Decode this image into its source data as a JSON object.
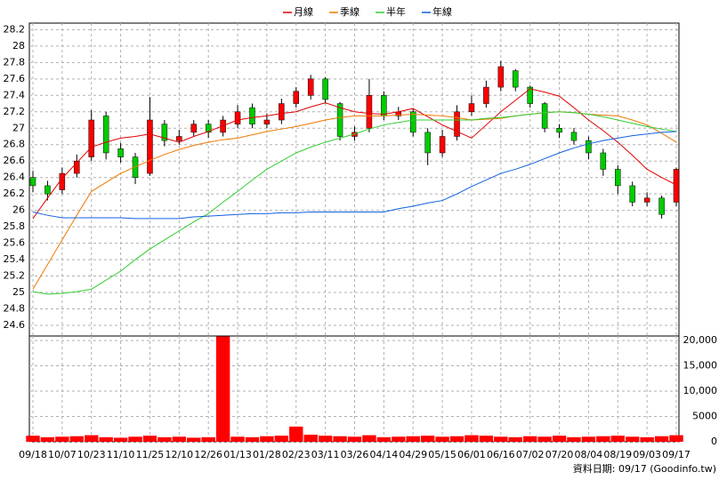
{
  "chart_data": [
    {
      "type": "candlestick",
      "categories": [
        "09/18",
        null,
        "10/07",
        null,
        "10/23",
        null,
        "11/10",
        null,
        "11/25",
        null,
        "12/10",
        null,
        "12/26",
        null,
        "01/13",
        null,
        "01/28",
        null,
        "02/23",
        null,
        "03/11",
        null,
        "03/26",
        null,
        "04/14",
        null,
        "04/29",
        null,
        "05/15",
        null,
        "06/01",
        null,
        "06/16",
        null,
        "07/02",
        null,
        "07/20",
        null,
        "08/04",
        null,
        "08/19",
        null,
        "09/03",
        null,
        "09/17"
      ],
      "open": [
        26.4,
        26.3,
        26.25,
        26.45,
        26.65,
        27.15,
        26.75,
        26.65,
        26.45,
        27.05,
        26.85,
        26.95,
        27.05,
        26.95,
        27.05,
        27.25,
        27.05,
        27.1,
        27.3,
        27.4,
        27.6,
        27.3,
        26.9,
        27.0,
        27.4,
        27.15,
        27.2,
        26.95,
        26.7,
        26.9,
        27.2,
        27.3,
        27.5,
        27.7,
        27.5,
        27.3,
        27.0,
        26.95,
        26.85,
        26.7,
        26.5,
        26.3,
        26.1,
        26.15,
        26.1
      ],
      "high": [
        26.48,
        26.36,
        26.52,
        26.68,
        27.22,
        27.2,
        26.82,
        26.7,
        27.38,
        27.1,
        26.98,
        27.1,
        27.1,
        27.15,
        27.28,
        27.3,
        27.18,
        27.36,
        27.5,
        27.65,
        27.62,
        27.32,
        27.02,
        27.6,
        27.45,
        27.26,
        27.24,
        27.0,
        26.98,
        27.28,
        27.4,
        27.58,
        27.82,
        27.72,
        27.52,
        27.32,
        27.05,
        27.0,
        26.9,
        26.75,
        26.55,
        26.35,
        26.22,
        26.18,
        26.52
      ],
      "low": [
        26.22,
        26.12,
        26.2,
        26.4,
        26.6,
        26.62,
        26.58,
        26.32,
        26.42,
        26.78,
        26.8,
        26.9,
        26.88,
        26.9,
        27.0,
        27.0,
        27.0,
        27.05,
        27.25,
        27.35,
        27.3,
        26.85,
        26.85,
        26.95,
        27.1,
        27.1,
        26.9,
        26.55,
        26.65,
        26.85,
        27.15,
        27.25,
        27.45,
        27.45,
        27.25,
        26.95,
        26.88,
        26.8,
        26.62,
        26.42,
        26.2,
        26.05,
        26.05,
        25.9,
        26.05
      ],
      "close": [
        26.3,
        26.2,
        26.45,
        26.6,
        27.1,
        26.7,
        26.65,
        26.4,
        27.1,
        26.85,
        26.9,
        27.05,
        26.95,
        27.1,
        27.2,
        27.05,
        27.1,
        27.3,
        27.45,
        27.6,
        27.35,
        26.9,
        26.95,
        27.4,
        27.15,
        27.2,
        26.95,
        26.7,
        26.9,
        27.2,
        27.3,
        27.5,
        27.75,
        27.5,
        27.3,
        27.0,
        26.95,
        26.85,
        26.7,
        26.5,
        26.3,
        26.1,
        26.15,
        25.95,
        26.5
      ],
      "up_color": "#ff0000",
      "down_color": "#00cc00",
      "series": [
        {
          "name": "月線",
          "color": "#e00000",
          "values": [
            25.9,
            26.15,
            26.39,
            26.58,
            26.77,
            26.83,
            26.88,
            26.9,
            26.93,
            26.88,
            26.83,
            26.9,
            26.96,
            27.03,
            27.1,
            27.13,
            27.15,
            27.18,
            27.2,
            27.26,
            27.31,
            27.25,
            27.2,
            27.18,
            27.17,
            27.2,
            27.24,
            27.14,
            27.04,
            26.96,
            26.88,
            27.04,
            27.2,
            27.34,
            27.48,
            27.44,
            27.39,
            27.25,
            27.1,
            26.97,
            26.83,
            26.67,
            26.5,
            26.4,
            26.31
          ]
        },
        {
          "name": "季線",
          "color": "#f07800",
          "values": [
            25.04,
            25.34,
            25.64,
            25.94,
            26.23,
            26.34,
            26.45,
            26.53,
            26.61,
            26.68,
            26.74,
            26.79,
            26.83,
            26.86,
            26.88,
            26.92,
            26.96,
            26.99,
            27.02,
            27.06,
            27.1,
            27.13,
            27.15,
            27.15,
            27.15,
            27.16,
            27.17,
            27.16,
            27.15,
            27.13,
            27.1,
            27.11,
            27.12,
            27.15,
            27.17,
            27.19,
            27.2,
            27.19,
            27.17,
            27.16,
            27.15,
            27.1,
            27.04,
            26.94,
            26.83
          ]
        },
        {
          "name": "半年",
          "color": "#33cc33",
          "values": [
            25.01,
            24.98,
            24.99,
            25.01,
            25.04,
            25.15,
            25.26,
            25.4,
            25.53,
            25.64,
            25.75,
            25.86,
            25.96,
            26.1,
            26.23,
            26.37,
            26.5,
            26.6,
            26.7,
            26.77,
            26.83,
            26.88,
            26.93,
            26.99,
            27.04,
            27.07,
            27.1,
            27.1,
            27.1,
            27.1,
            27.1,
            27.12,
            27.13,
            27.15,
            27.17,
            27.19,
            27.2,
            27.19,
            27.17,
            27.14,
            27.1,
            27.06,
            27.02,
            26.99,
            26.96
          ]
        },
        {
          "name": "年線",
          "color": "#1060e0",
          "values": [
            25.98,
            25.94,
            25.91,
            25.91,
            25.91,
            25.91,
            25.91,
            25.9,
            25.9,
            25.9,
            25.9,
            25.92,
            25.93,
            25.94,
            25.95,
            25.96,
            25.96,
            25.97,
            25.97,
            25.98,
            25.98,
            25.98,
            25.98,
            25.98,
            25.98,
            26.02,
            26.05,
            26.09,
            26.12,
            26.2,
            26.29,
            26.37,
            26.45,
            26.5,
            26.56,
            26.63,
            26.7,
            26.76,
            26.81,
            26.85,
            26.88,
            26.91,
            26.93,
            26.95,
            26.96
          ]
        }
      ],
      "ylim": [
        24.47,
        28.28
      ],
      "yticks": [
        24.6,
        24.8,
        25,
        25.2,
        25.4,
        25.6,
        25.8,
        26,
        26.2,
        26.4,
        26.6,
        26.8,
        27,
        27.2,
        27.4,
        27.6,
        27.8,
        28,
        28.2
      ],
      "grid": true,
      "footer": "資料日期: 09/17 (Goodinfo.tw)"
    },
    {
      "type": "bar",
      "values": [
        1200,
        900,
        1000,
        1100,
        1300,
        900,
        800,
        1000,
        1200,
        900,
        1000,
        800,
        900,
        20800,
        1000,
        900,
        1100,
        1200,
        3000,
        1400,
        1200,
        1100,
        1000,
        1300,
        900,
        1000,
        1100,
        1200,
        1000,
        1100,
        1300,
        1200,
        1000,
        900,
        1100,
        1000,
        1200,
        900,
        1000,
        1100,
        1200,
        1000,
        900,
        1100,
        1300
      ],
      "color": "#ff0000",
      "ylim": [
        0,
        20890
      ],
      "yticks": [
        0,
        5000,
        {
          "value": 10000,
          "label": "10,000"
        },
        {
          "value": 15000,
          "label": "15,000"
        },
        {
          "value": 20000,
          "label": "20,000"
        }
      ],
      "grid": true
    }
  ]
}
